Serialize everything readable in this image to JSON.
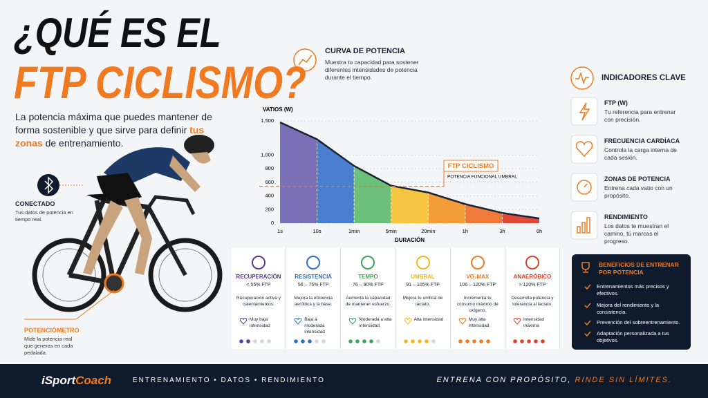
{
  "header": {
    "title_line1": "¿QUÉ ES EL",
    "title_line2": "FTP CICLISMO?",
    "description": {
      "before": "La potencia máxima que puedes mantener de forma sostenible y que sirve para definir ",
      "highlight": "tus zonas",
      "after": " de entrenamiento."
    }
  },
  "callouts": [
    {
      "title": "CONECTADO",
      "text": "Tus datos de potencia en tiempo real."
    },
    {
      "title": "POTENCIÓMETRO",
      "text": "Mide la potencia real que generas en cada pedalada."
    }
  ],
  "power_curve_intro": {
    "title": "CURVA DE POTENCIA",
    "text": "Muestra tu capacidad para sostener diferentes intensidades de potencia durante el tiempo."
  },
  "chart_data": {
    "type": "area",
    "y_label": "VATIOS (W)",
    "x_label": "DURACIÓN",
    "categories": [
      "1s",
      "10s",
      "1min",
      "5min",
      "20min",
      "1h",
      "3h",
      "6h"
    ],
    "values": [
      1480,
      1230,
      840,
      550,
      450,
      280,
      150,
      70
    ],
    "line_color": "#1a2233",
    "zone_colors": [
      "#7b6fb8",
      "#4a7fd0",
      "#6cc07a",
      "#f5c542",
      "#f39c3a",
      "#f07a3a",
      "#e04a3a"
    ],
    "ylim": [
      0,
      1500
    ],
    "yticks": [
      0,
      200,
      400,
      600,
      800,
      {
        "value": 1000,
        "label": "1.000"
      },
      {
        "value": 1500,
        "label": "1.500"
      }
    ],
    "grid": true,
    "annotation": {
      "title": "FTP CICLISMO",
      "subtitle": "POTENCIA FUNCIONAL UMBRAL",
      "value": 540,
      "color": "#f07a22"
    }
  },
  "zones": [
    {
      "name": "RECUPERACIÓN",
      "range": "< 55% FTP",
      "description": "Recuperación activa y calentamientos.",
      "intensity": "Muy baja intensidad",
      "level": 2,
      "color": "#5b3a8f"
    },
    {
      "name": "RESISTENCIA",
      "range": "56 – 75% FTP",
      "description": "Mejora la eficiencia aeróbica y la base.",
      "intensity": "Baja a moderada intensidad",
      "level": 3,
      "color": "#2f6fc4"
    },
    {
      "name": "TEMPO",
      "range": "76 – 90% FTP",
      "description": "Aumenta la capacidad de mantener esfuerzo.",
      "intensity": "Moderada a alta intensidad",
      "level": 4,
      "color": "#3aa655"
    },
    {
      "name": "UMBRAL",
      "range": "91 – 105% FTP",
      "description": "Mejora tu umbral de lactato.",
      "intensity": "Alta intensidad",
      "level": 4,
      "color": "#f2b71c"
    },
    {
      "name": "VO₂MAX",
      "range": "106 – 120% FTP",
      "description": "Incrementa tu consumo máximo de oxígeno.",
      "intensity": "Muy alta intensidad",
      "level": 5,
      "color": "#f07a22"
    },
    {
      "name": "ANAERÓBICO",
      "range": "> 120% FTP",
      "description": "Desarrolla potencia y tolerancia al lactato.",
      "intensity": "Intensidad máxima",
      "level": 5,
      "color": "#e0402b"
    }
  ],
  "indicators": {
    "title": "INDICADORES CLAVE",
    "items": [
      {
        "title": "FTP (W)",
        "text": "Tu referencia para entrenar con precisión."
      },
      {
        "title": "FRECUENCIA CARDÍACA",
        "text": "Controla la carga interna de cada sesión."
      },
      {
        "title": "ZONAS DE POTENCIA",
        "text": "Entrena cada vatio con un propósito."
      },
      {
        "title": "RENDIMIENTO",
        "text": "Los datos te muestran el camino, tú marcas el progreso."
      }
    ]
  },
  "benefits": {
    "title": "BENEFICIOS DE ENTRENAR POR POTENCIA",
    "items": [
      "Entrenamientos más precisos y efectivos.",
      "Mejora del rendimiento y la consistencia.",
      "Prevención del sobreentrenamiento.",
      "Adaptación personalizada a tus objetivos."
    ]
  },
  "footer": {
    "logo_part1": "iSport",
    "logo_part2": "Coach",
    "tagline": "ENTRENAMIENTO • DATOS • RENDIMIENTO",
    "slogan_part1": "ENTRENA CON PROPÓSITO, ",
    "slogan_part2": "RINDE SIN LÍMITES."
  }
}
